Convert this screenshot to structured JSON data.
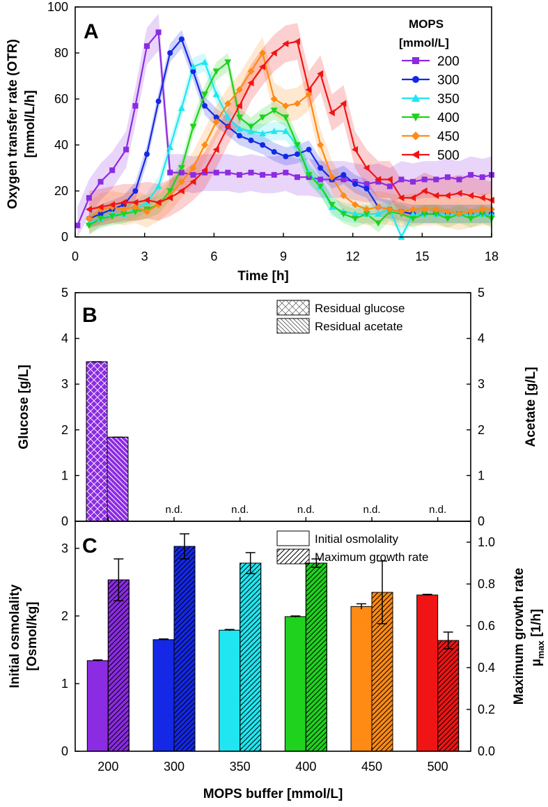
{
  "colors": {
    "200": "#8b2be2",
    "300": "#1428e6",
    "350": "#1fe6f0",
    "400": "#1ed21e",
    "450": "#ff8a14",
    "500": "#f01414"
  },
  "chart_data": [
    {
      "type": "line",
      "panel_label": "A",
      "title": "",
      "xlabel": "Time  [h]",
      "ylabel_line1": "Oxygen transfer rate (OTR)",
      "ylabel_line2": "[mmol/L/h]",
      "xlim": [
        0,
        18
      ],
      "ylim": [
        0,
        100
      ],
      "x_ticks": [
        0,
        3,
        6,
        9,
        12,
        15,
        18
      ],
      "y_ticks": [
        0,
        20,
        40,
        60,
        80,
        100
      ],
      "legend_title_line1": "MOPS",
      "legend_title_line2": "[mmol/L]",
      "legend_position": "top-right",
      "series": [
        {
          "name": "200",
          "marker": "square",
          "color": "#8b2be2",
          "band": 8,
          "x": [
            0.1,
            0.6,
            1.1,
            1.6,
            2.2,
            2.6,
            3.1,
            3.6,
            4.1,
            4.6,
            5.1,
            5.6,
            6.1,
            6.6,
            7.1,
            7.6,
            8.1,
            8.6,
            9.1,
            9.6,
            10.1,
            10.6,
            11.1,
            11.6,
            12.1,
            12.6,
            13.1,
            13.6,
            14.1,
            14.6,
            15.1,
            15.6,
            16.1,
            16.6,
            17.1,
            17.6,
            18
          ],
          "y": [
            5,
            17,
            24,
            29,
            38,
            57,
            83,
            89,
            28,
            28,
            27,
            28,
            28,
            28,
            27,
            28,
            27,
            27,
            28,
            26,
            26,
            25,
            25,
            25,
            24,
            23,
            24,
            22,
            25,
            24,
            25,
            25,
            26,
            25,
            27,
            26,
            27
          ]
        },
        {
          "name": "300",
          "marker": "circle",
          "color": "#1428e6",
          "band": 4,
          "x": [
            0.6,
            1.1,
            1.6,
            2.1,
            2.6,
            3.1,
            3.6,
            4.1,
            4.6,
            5.1,
            5.6,
            6.1,
            6.6,
            7.1,
            7.6,
            8.1,
            8.6,
            9.1,
            9.6,
            10.1,
            10.6,
            11.1,
            11.6,
            12.1,
            12.6,
            13.1,
            13.6,
            14.1,
            14.6,
            15.1,
            15.6,
            16.1,
            16.6,
            17.1,
            17.6,
            18
          ],
          "y": [
            8,
            10,
            12,
            14,
            20,
            36,
            59,
            80,
            86,
            72,
            57,
            52,
            48,
            44,
            42,
            40,
            37,
            35,
            36,
            38,
            30,
            25,
            27,
            23,
            21,
            13,
            12,
            11,
            10,
            10,
            10,
            10,
            10,
            10,
            10,
            10
          ]
        },
        {
          "name": "350",
          "marker": "triangle-up",
          "color": "#1fe6f0",
          "band": 4,
          "x": [
            0.6,
            1.1,
            1.6,
            2.1,
            2.6,
            3.1,
            3.6,
            4.1,
            4.6,
            5.1,
            5.6,
            6.1,
            6.6,
            7.1,
            7.6,
            8.1,
            8.6,
            9.1,
            9.6,
            10.1,
            10.6,
            11.1,
            11.6,
            12.1,
            12.6,
            13.1,
            13.6,
            14.1,
            14.6,
            15.1,
            15.6,
            16.1,
            16.6,
            17.1,
            17.6,
            18
          ],
          "y": [
            6,
            8,
            10,
            10,
            12,
            15,
            22,
            39,
            56,
            74,
            76,
            62,
            52,
            47,
            46,
            45,
            46,
            46,
            40,
            28,
            22,
            13,
            11,
            10,
            10,
            10,
            12,
            0,
            10,
            10,
            10,
            10,
            10,
            10,
            10,
            10
          ]
        },
        {
          "name": "400",
          "marker": "triangle-down",
          "color": "#1ed21e",
          "band": 4,
          "x": [
            0.6,
            1.1,
            1.6,
            2.1,
            2.6,
            3.1,
            3.6,
            4.1,
            4.6,
            5.1,
            5.6,
            6.1,
            6.6,
            7.1,
            7.6,
            8.1,
            8.6,
            9.1,
            9.6,
            10.1,
            10.6,
            11.1,
            11.6,
            12.1,
            12.6,
            13.1,
            13.6,
            14.1,
            14.6,
            15.1,
            15.6,
            16.1,
            16.6,
            17.1,
            17.6,
            18
          ],
          "y": [
            5,
            8,
            9,
            10,
            11,
            12,
            14,
            20,
            30,
            48,
            62,
            72,
            76,
            52,
            48,
            52,
            55,
            52,
            40,
            27,
            22,
            14,
            10,
            8,
            10,
            6,
            11,
            10,
            8,
            10,
            10,
            8,
            10,
            8,
            10,
            8
          ]
        },
        {
          "name": "450",
          "marker": "diamond",
          "color": "#ff8a14",
          "band": 7,
          "x": [
            0.6,
            1.1,
            1.6,
            2.1,
            2.6,
            3.1,
            3.6,
            4.1,
            4.6,
            5.1,
            5.6,
            6.1,
            6.6,
            7.1,
            7.6,
            8.1,
            8.6,
            9.1,
            9.6,
            10.1,
            10.6,
            11.1,
            11.6,
            12.1,
            12.6,
            13.1,
            13.6,
            14.1,
            14.6,
            15.1,
            15.6,
            16.1,
            16.6,
            17.1,
            17.6,
            18
          ],
          "y": [
            8,
            12,
            13,
            12,
            13,
            11,
            14,
            18,
            24,
            30,
            40,
            50,
            58,
            64,
            72,
            80,
            60,
            57,
            58,
            62,
            40,
            26,
            18,
            14,
            12,
            13,
            12,
            11,
            12,
            12,
            12,
            11,
            10,
            11,
            12,
            12
          ]
        },
        {
          "name": "500",
          "marker": "triangle-left",
          "color": "#f01414",
          "band": 8,
          "x": [
            0.6,
            1.1,
            1.6,
            2.1,
            2.6,
            3.1,
            3.6,
            4.1,
            4.6,
            5.1,
            5.6,
            6.1,
            6.6,
            7.1,
            7.6,
            8.1,
            8.6,
            9.1,
            9.6,
            10.1,
            10.6,
            11.1,
            11.6,
            12.1,
            12.6,
            13.1,
            13.6,
            14.1,
            14.6,
            15.1,
            15.6,
            16.1,
            16.6,
            17.1,
            17.6,
            18
          ],
          "y": [
            12,
            13,
            14,
            15,
            15,
            16,
            15,
            17,
            20,
            24,
            29,
            38,
            48,
            57,
            67,
            74,
            80,
            84,
            85,
            64,
            71,
            54,
            58,
            38,
            30,
            25,
            25,
            17,
            17,
            20,
            18,
            18,
            19,
            18,
            17,
            16
          ]
        }
      ]
    },
    {
      "type": "bar",
      "panel_label": "B",
      "categories": [
        "200",
        "300",
        "350",
        "400",
        "450",
        "500"
      ],
      "ylabel_left": "Glucose  [g/L]",
      "ylabel_right": "Acetate  [g/L]",
      "ylim_left": [
        0,
        5
      ],
      "ylim_right": [
        0,
        5
      ],
      "y_ticks": [
        0,
        1,
        2,
        3,
        4,
        5
      ],
      "legend": [
        "Residual glucose",
        "Residual acetate"
      ],
      "legend_position": "top-right",
      "series": [
        {
          "name": "Residual glucose",
          "axis": "left",
          "values": [
            3.49,
            null,
            null,
            null,
            null,
            null
          ],
          "errors": [
            0.02,
            null,
            null,
            null,
            null,
            null
          ]
        },
        {
          "name": "Residual acetate",
          "axis": "right",
          "values": [
            1.84,
            null,
            null,
            null,
            null,
            null
          ],
          "errors": [
            0.02,
            null,
            null,
            null,
            null,
            null
          ]
        }
      ],
      "annotations": [
        {
          "category": "300",
          "text": "n.d."
        },
        {
          "category": "350",
          "text": "n.d."
        },
        {
          "category": "400",
          "text": "n.d."
        },
        {
          "category": "450",
          "text": "n.d."
        },
        {
          "category": "500",
          "text": "n.d."
        }
      ]
    },
    {
      "type": "bar",
      "panel_label": "C",
      "categories": [
        "200",
        "300",
        "350",
        "400",
        "450",
        "500"
      ],
      "xlabel": "MOPS buffer  [mmol/L]",
      "ylabel_left_line1": "Initial osmolality",
      "ylabel_left_line2": "[Osmol/kg]",
      "ylabel_right_line1": "Maximum growth rate",
      "ylabel_right_mu": "µ",
      "ylabel_right_sub": "max",
      "ylabel_right_unit": " [1/h]",
      "ylim_left": [
        0,
        3.4
      ],
      "ylim_right": [
        0,
        1.1
      ],
      "y_ticks_left": [
        0,
        1,
        2,
        3
      ],
      "y_ticks_right": [
        0.0,
        0.2,
        0.4,
        0.6,
        0.8,
        1.0
      ],
      "legend": [
        "Initial osmolality",
        "Maximum growth rate"
      ],
      "legend_position": "top-right",
      "series": [
        {
          "name": "Initial osmolality",
          "axis": "left",
          "values": [
            1.34,
            1.65,
            1.79,
            1.99,
            2.14,
            2.31
          ],
          "errors": [
            0.01,
            0.01,
            0.01,
            0.01,
            0.04,
            0.01
          ]
        },
        {
          "name": "Maximum growth rate",
          "axis": "right",
          "values": [
            0.82,
            0.98,
            0.9,
            0.9,
            0.76,
            0.53
          ],
          "errors": [
            0.1,
            0.06,
            0.05,
            0.02,
            0.15,
            0.04
          ]
        }
      ]
    }
  ]
}
